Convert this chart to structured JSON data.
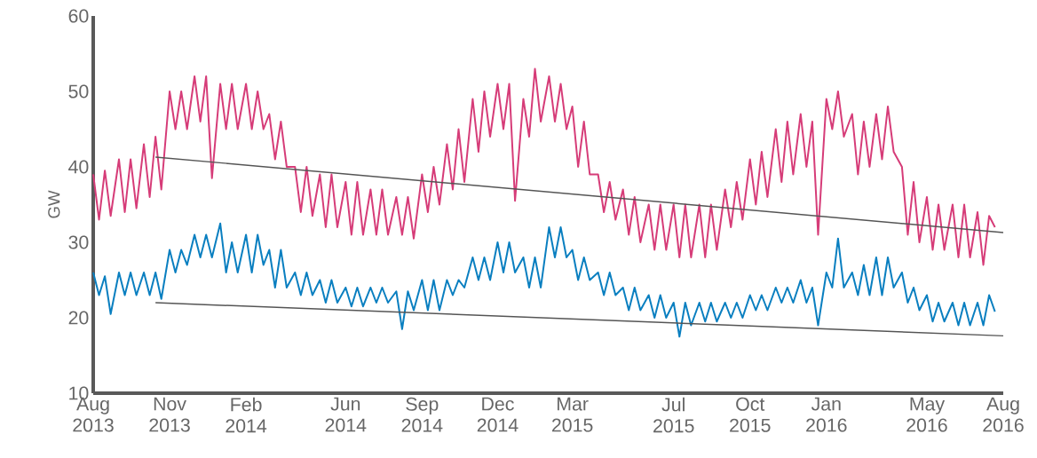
{
  "chart_data": {
    "type": "line",
    "ylabel": "GW",
    "x": [
      "2013-08-01",
      "2013-08-08",
      "2013-08-15",
      "2013-08-22",
      "2013-09-01",
      "2013-09-08",
      "2013-09-15",
      "2013-09-22",
      "2013-10-01",
      "2013-10-08",
      "2013-10-15",
      "2013-10-22",
      "2013-11-01",
      "2013-11-08",
      "2013-11-15",
      "2013-11-22",
      "2013-12-01",
      "2013-12-08",
      "2013-12-15",
      "2013-12-22",
      "2014-01-01",
      "2014-01-08",
      "2014-01-15",
      "2014-01-22",
      "2014-02-01",
      "2014-02-08",
      "2014-02-15",
      "2014-02-22",
      "2014-03-01",
      "2014-03-08",
      "2014-03-15",
      "2014-03-22",
      "2014-04-01",
      "2014-04-08",
      "2014-04-15",
      "2014-04-22",
      "2014-05-01",
      "2014-05-08",
      "2014-05-15",
      "2014-05-22",
      "2014-06-01",
      "2014-06-08",
      "2014-06-15",
      "2014-06-22",
      "2014-07-01",
      "2014-07-08",
      "2014-07-15",
      "2014-07-22",
      "2014-08-01",
      "2014-08-08",
      "2014-08-15",
      "2014-08-22",
      "2014-09-01",
      "2014-09-08",
      "2014-09-15",
      "2014-09-22",
      "2014-10-01",
      "2014-10-08",
      "2014-10-15",
      "2014-10-22",
      "2014-11-01",
      "2014-11-08",
      "2014-11-15",
      "2014-11-22",
      "2014-12-01",
      "2014-12-08",
      "2014-12-15",
      "2014-12-22",
      "2015-01-01",
      "2015-01-08",
      "2015-01-15",
      "2015-01-22",
      "2015-02-01",
      "2015-02-08",
      "2015-02-15",
      "2015-02-22",
      "2015-03-01",
      "2015-03-08",
      "2015-03-15",
      "2015-03-22",
      "2015-04-01",
      "2015-04-08",
      "2015-04-15",
      "2015-04-22",
      "2015-05-01",
      "2015-05-08",
      "2015-05-15",
      "2015-05-22",
      "2015-06-01",
      "2015-06-08",
      "2015-06-15",
      "2015-06-22",
      "2015-07-01",
      "2015-07-08",
      "2015-07-15",
      "2015-07-22",
      "2015-08-01",
      "2015-08-08",
      "2015-08-15",
      "2015-08-22",
      "2015-09-01",
      "2015-09-08",
      "2015-09-15",
      "2015-09-22",
      "2015-10-01",
      "2015-10-08",
      "2015-10-15",
      "2015-10-22",
      "2015-11-01",
      "2015-11-08",
      "2015-11-15",
      "2015-11-22",
      "2015-12-01",
      "2015-12-08",
      "2015-12-15",
      "2015-12-22",
      "2016-01-01",
      "2016-01-08",
      "2016-01-15",
      "2016-01-22",
      "2016-02-01",
      "2016-02-08",
      "2016-02-15",
      "2016-02-22",
      "2016-03-01",
      "2016-03-08",
      "2016-03-15",
      "2016-03-22",
      "2016-04-01",
      "2016-04-08",
      "2016-04-15",
      "2016-04-22",
      "2016-05-01",
      "2016-05-08",
      "2016-05-15",
      "2016-05-22",
      "2016-06-01",
      "2016-06-08",
      "2016-06-15",
      "2016-06-22",
      "2016-07-01",
      "2016-07-08",
      "2016-07-15",
      "2016-07-22"
    ],
    "series": [
      {
        "color": "#d63c78",
        "values": [
          39,
          33,
          39.5,
          33.5,
          41,
          34,
          41,
          34.5,
          43,
          36,
          44,
          37,
          50,
          45,
          50,
          45,
          52,
          46,
          52,
          38.5,
          51,
          45,
          51,
          45,
          51,
          45,
          50,
          45,
          47,
          41,
          46,
          40,
          40,
          34,
          40,
          33.5,
          39,
          32,
          39,
          32,
          38,
          31,
          38,
          31,
          37,
          31,
          37,
          31,
          36,
          31,
          36,
          30.5,
          39,
          34,
          40,
          35,
          43,
          37,
          45,
          38,
          49,
          42,
          50,
          44,
          51,
          45,
          51,
          35.5,
          49,
          44,
          53,
          46,
          52,
          46,
          51,
          45,
          48,
          40,
          46,
          39,
          39,
          34,
          38,
          33,
          37,
          31,
          36,
          30,
          35,
          29,
          35,
          29,
          35,
          28,
          35,
          28,
          35,
          28,
          35,
          29,
          37,
          32,
          38,
          33,
          41,
          35,
          42,
          36,
          45,
          38,
          46,
          39,
          47,
          40,
          46,
          31,
          49,
          45,
          50,
          44,
          47,
          39,
          46,
          40,
          47,
          41,
          48,
          42,
          40,
          31,
          38,
          30,
          36,
          29,
          35,
          29,
          35,
          28,
          35,
          28,
          34,
          27,
          33.5,
          32
        ]
      },
      {
        "color": "#0a7fc0",
        "values": [
          26,
          23,
          25.5,
          20.5,
          26,
          23,
          26,
          23,
          26,
          23,
          26,
          22.5,
          29,
          26,
          29,
          27,
          31,
          28,
          31,
          28,
          32.5,
          26,
          30,
          26,
          31,
          26,
          31,
          27,
          29,
          24,
          29,
          24,
          26,
          23,
          26,
          23,
          25,
          22,
          25,
          22,
          24,
          21.5,
          24,
          21.5,
          24,
          22,
          24,
          22,
          23.5,
          18.5,
          23.5,
          21,
          25,
          21,
          25,
          21,
          25,
          23,
          25,
          24,
          28,
          25,
          28,
          25,
          30,
          26,
          30,
          26,
          28,
          24,
          28,
          24,
          32,
          28,
          32,
          28,
          29,
          25,
          28,
          25,
          26,
          23,
          26,
          23,
          24,
          21,
          24,
          21,
          23,
          20,
          23,
          20,
          22,
          17.5,
          22,
          19,
          22,
          19.5,
          22,
          19.5,
          22,
          20,
          22,
          20,
          23,
          21,
          23,
          21,
          24,
          22,
          24,
          22,
          25,
          22,
          24,
          19,
          26,
          24,
          30.5,
          24,
          26,
          23,
          27,
          23,
          28,
          23,
          28,
          24,
          26,
          22,
          24,
          21,
          23,
          19.5,
          22,
          19.5,
          22,
          19,
          22,
          19,
          22,
          19,
          23,
          20.8
        ]
      },
      {
        "type": "line",
        "color": "#555555",
        "x": [
          "2013-10-15",
          "2016-08-01"
        ],
        "values": [
          41.3,
          31.3
        ]
      },
      {
        "type": "line",
        "color": "#555555",
        "x": [
          "2013-10-15",
          "2016-08-01"
        ],
        "values": [
          22.0,
          17.6
        ]
      }
    ],
    "xlim": [
      "2013-08-01",
      "2016-08-01"
    ],
    "xticks": [
      {
        "value": "2013-08-01",
        "label": "Aug 2013"
      },
      {
        "value": "2013-11-01",
        "label": "Nov 2013"
      },
      {
        "value": "2014-02-01",
        "label": "Feb 2014"
      },
      {
        "value": "2014-06-01",
        "label": "Jun 2014"
      },
      {
        "value": "2014-09-01",
        "label": "Sep 2014"
      },
      {
        "value": "2014-12-01",
        "label": "Dec 2014"
      },
      {
        "value": "2015-03-01",
        "label": "Mar 2015"
      },
      {
        "value": "2015-07-01",
        "label": "Jul 2015"
      },
      {
        "value": "2015-10-01",
        "label": "Oct 2015"
      },
      {
        "value": "2016-01-01",
        "label": "Jan 2016"
      },
      {
        "value": "2016-05-01",
        "label": "May 2016"
      },
      {
        "value": "2016-08-01",
        "label": "Aug 2016"
      }
    ],
    "ylim": [
      10,
      60
    ],
    "yticks": [
      10,
      20,
      30,
      40,
      50,
      60
    ],
    "grid": false,
    "legend": false,
    "marker": "none",
    "line_style": "solid"
  }
}
